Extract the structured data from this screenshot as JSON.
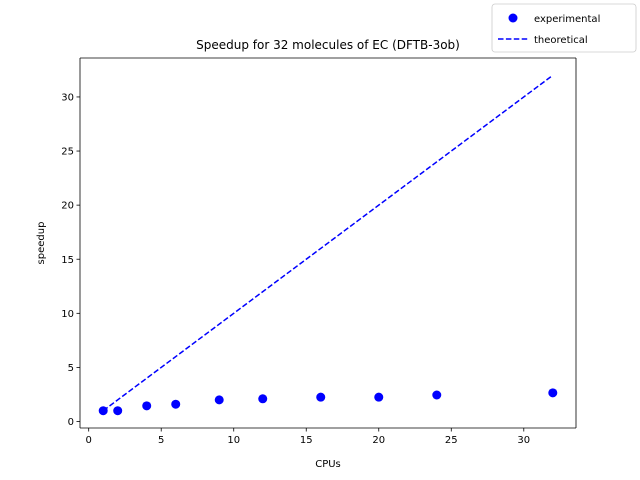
{
  "chart_data": {
    "type": "scatter",
    "title": "Speedup for 32 molecules of EC (DFTB-3ob)",
    "xlabel": "CPUs",
    "ylabel": "speedup",
    "xlim": [
      -0.6,
      33.6
    ],
    "ylim": [
      -0.6,
      33.6
    ],
    "xticks": [
      0,
      5,
      10,
      15,
      20,
      25,
      30
    ],
    "yticks": [
      0,
      5,
      10,
      15,
      20,
      25,
      30
    ],
    "grid": false,
    "legend_position": "top-right",
    "series": [
      {
        "name": "experimental",
        "kind": "scatter",
        "color": "#0000ff",
        "x": [
          1,
          2,
          4,
          6,
          9,
          12,
          16,
          20,
          24,
          32
        ],
        "y": [
          1.0,
          1.0,
          1.45,
          1.6,
          2.0,
          2.1,
          2.25,
          2.25,
          2.45,
          2.65
        ]
      },
      {
        "name": "theoretical",
        "kind": "line",
        "style": "dashed",
        "color": "#0000ff",
        "x": [
          1,
          32
        ],
        "y": [
          1,
          32
        ]
      }
    ]
  }
}
